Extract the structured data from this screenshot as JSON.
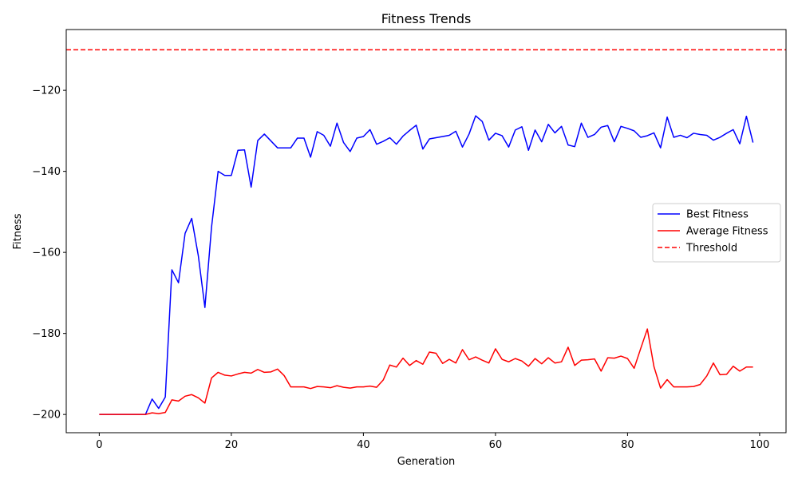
{
  "chart_data": {
    "type": "line",
    "title": "Fitness Trends",
    "xlabel": "Generation",
    "ylabel": "Fitness",
    "xlim": [
      -5,
      104
    ],
    "ylim": [
      -204.5,
      -105
    ],
    "xticks": [
      0,
      20,
      40,
      60,
      80,
      100
    ],
    "yticks": [
      -200,
      -180,
      -160,
      -140,
      -120
    ],
    "legend_position": "center-right",
    "series": [
      {
        "name": "Best Fitness",
        "color": "#0000ff",
        "style": "solid",
        "x": [
          0,
          1,
          2,
          3,
          4,
          5,
          6,
          7,
          8,
          9,
          10,
          11,
          12,
          13,
          14,
          15,
          16,
          17,
          18,
          19,
          20,
          21,
          22,
          23,
          24,
          25,
          26,
          27,
          28,
          29,
          30,
          31,
          32,
          33,
          34,
          35,
          36,
          37,
          38,
          39,
          40,
          41,
          42,
          43,
          44,
          45,
          46,
          47,
          48,
          49,
          50,
          51,
          52,
          53,
          54,
          55,
          56,
          57,
          58,
          59,
          60,
          61,
          62,
          63,
          64,
          65,
          66,
          67,
          68,
          69,
          70,
          71,
          72,
          73,
          74,
          75,
          76,
          77,
          78,
          79,
          80,
          81,
          82,
          83,
          84,
          85,
          86,
          87,
          88,
          89,
          90,
          91,
          92,
          93,
          94,
          95,
          96,
          97,
          98,
          99
        ],
        "y": [
          -200,
          -200,
          -200,
          -200,
          -200,
          -200,
          -200,
          -200,
          -196.2,
          -198.5,
          -195.7,
          -164.3,
          -167.5,
          -155.3,
          -151.6,
          -160.8,
          -173.6,
          -153.8,
          -140,
          -141,
          -141,
          -134.8,
          -134.7,
          -143.9,
          -132.4,
          -130.8,
          -132.5,
          -134.2,
          -134.2,
          -134.2,
          -131.8,
          -131.8,
          -136.5,
          -130.2,
          -131.1,
          -133.8,
          -128.1,
          -132.9,
          -135.1,
          -131.8,
          -131.4,
          -129.7,
          -133.3,
          -132.6,
          -131.7,
          -133.3,
          -131.3,
          -129.9,
          -128.6,
          -134.5,
          -132,
          -131.7,
          -131.4,
          -131.1,
          -130.1,
          -134,
          -130.8,
          -126.3,
          -127.7,
          -132.3,
          -130.6,
          -131.2,
          -134,
          -129.8,
          -129,
          -134.8,
          -129.8,
          -132.7,
          -128.4,
          -130.5,
          -128.9,
          -133.5,
          -133.9,
          -128.1,
          -131.6,
          -130.9,
          -129.1,
          -128.7,
          -132.7,
          -128.9,
          -129.4,
          -130,
          -131.6,
          -131.2,
          -130.5,
          -134.2,
          -126.6,
          -131.6,
          -131.1,
          -131.7,
          -130.6,
          -130.9,
          -131.1,
          -132.3,
          -131.6,
          -130.6,
          -129.7,
          -133.2,
          -126.4,
          -132.9
        ]
      },
      {
        "name": "Average Fitness",
        "color": "#ff0000",
        "style": "solid",
        "x": [
          0,
          1,
          2,
          3,
          4,
          5,
          6,
          7,
          8,
          9,
          10,
          11,
          12,
          13,
          14,
          15,
          16,
          17,
          18,
          19,
          20,
          21,
          22,
          23,
          24,
          25,
          26,
          27,
          28,
          29,
          30,
          31,
          32,
          33,
          34,
          35,
          36,
          37,
          38,
          39,
          40,
          41,
          42,
          43,
          44,
          45,
          46,
          47,
          48,
          49,
          50,
          51,
          52,
          53,
          54,
          55,
          56,
          57,
          58,
          59,
          60,
          61,
          62,
          63,
          64,
          65,
          66,
          67,
          68,
          69,
          70,
          71,
          72,
          73,
          74,
          75,
          76,
          77,
          78,
          79,
          80,
          81,
          82,
          83,
          84,
          85,
          86,
          87,
          88,
          89,
          90,
          91,
          92,
          93,
          94,
          95,
          96,
          97,
          98,
          99
        ],
        "y": [
          -200,
          -200,
          -200,
          -200,
          -200,
          -200,
          -200,
          -200,
          -199.6,
          -199.8,
          -199.5,
          -196.4,
          -196.7,
          -195.5,
          -195.1,
          -195.9,
          -197.2,
          -191,
          -189.6,
          -190.3,
          -190.5,
          -190,
          -189.6,
          -189.8,
          -188.9,
          -189.6,
          -189.5,
          -188.8,
          -190.4,
          -193.2,
          -193.2,
          -193.2,
          -193.6,
          -193.1,
          -193.2,
          -193.4,
          -192.9,
          -193.3,
          -193.5,
          -193.2,
          -193.2,
          -193,
          -193.3,
          -191.5,
          -187.8,
          -188.3,
          -186.1,
          -187.9,
          -186.7,
          -187.6,
          -184.6,
          -184.9,
          -187.4,
          -186.4,
          -187.3,
          -184,
          -186.5,
          -185.8,
          -186.6,
          -187.3,
          -183.8,
          -186.4,
          -187,
          -186.2,
          -186.8,
          -188.1,
          -186.2,
          -187.5,
          -186,
          -187.3,
          -187,
          -183.4,
          -187.9,
          -186.6,
          -186.5,
          -186.3,
          -189.3,
          -186,
          -186.1,
          -185.6,
          -186.2,
          -188.6,
          -183.7,
          -178.9,
          -188.2,
          -193.5,
          -191.4,
          -193.2,
          -193.2,
          -193.2,
          -193.1,
          -192.6,
          -190.5,
          -187.3,
          -190.2,
          -190.1,
          -188.1,
          -189.3,
          -188.3,
          -188.3
        ]
      },
      {
        "name": "Threshold",
        "color": "#ff0000",
        "style": "dashed",
        "hline": -110
      }
    ]
  }
}
